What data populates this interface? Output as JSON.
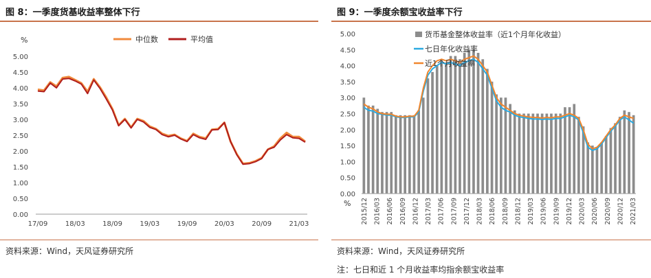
{
  "chart_data": [
    {
      "type": "line",
      "panel_title": "图 8：一季度货基收益率整体下行",
      "unit": "%",
      "ylim": [
        0,
        5
      ],
      "yticks": [
        "0.00",
        "0.50",
        "1.00",
        "1.50",
        "2.00",
        "2.50",
        "3.00",
        "3.50",
        "4.00",
        "4.50",
        "5.00"
      ],
      "x_ticks": [
        "17/09",
        "18/03",
        "18/09",
        "19/03",
        "19/09",
        "20/03",
        "20/09",
        "21/03"
      ],
      "x_tick_index": [
        0,
        6,
        12,
        18,
        24,
        30,
        36,
        42
      ],
      "legend_position": "top-center",
      "series": [
        {
          "name": "中位数",
          "color": "#f08a3c",
          "values": [
            3.95,
            3.92,
            4.18,
            4.05,
            4.32,
            4.35,
            4.25,
            4.15,
            3.88,
            4.28,
            4.02,
            3.7,
            3.33,
            2.82,
            3.02,
            2.75,
            3.02,
            2.95,
            2.78,
            2.7,
            2.55,
            2.48,
            2.52,
            2.4,
            2.32,
            2.55,
            2.45,
            2.4,
            2.68,
            2.7,
            2.9,
            2.3,
            1.9,
            1.6,
            1.62,
            1.68,
            1.78,
            2.05,
            2.15,
            2.4,
            2.58,
            2.45,
            2.45,
            2.3
          ]
        },
        {
          "name": "平均值",
          "color": "#b01d1d",
          "values": [
            3.9,
            3.88,
            4.15,
            4.0,
            4.28,
            4.3,
            4.22,
            4.12,
            3.82,
            4.25,
            3.98,
            3.65,
            3.3,
            2.8,
            3.0,
            2.73,
            3.0,
            2.92,
            2.75,
            2.68,
            2.52,
            2.45,
            2.5,
            2.38,
            2.3,
            2.52,
            2.42,
            2.37,
            2.67,
            2.68,
            2.9,
            2.3,
            1.88,
            1.58,
            1.6,
            1.66,
            1.76,
            2.05,
            2.12,
            2.35,
            2.52,
            2.42,
            2.4,
            2.28
          ]
        }
      ],
      "source": "资料来源：Wind，天风证券研究所"
    },
    {
      "type": "bar+line",
      "panel_title": "图 9：一季度余额宝收益率下行",
      "unit": "%",
      "ylim": [
        0,
        5
      ],
      "yticks": [
        "0.00",
        "0.50",
        "1.00",
        "1.50",
        "2.00",
        "2.50",
        "3.00",
        "3.50",
        "4.00",
        "4.50",
        "5.00"
      ],
      "x_ticks": [
        "2015/12",
        "2016/03",
        "2016/06",
        "2016/09",
        "2016/12",
        "2017/03",
        "2017/06",
        "2017/09",
        "2017/12",
        "2018/03",
        "2018/06",
        "2018/09",
        "2018/12",
        "2019/03",
        "2019/06",
        "2019/09",
        "2019/12",
        "2020/03",
        "2020/06",
        "2020/09",
        "2020/12",
        "2021/03"
      ],
      "legend_position": "top-left",
      "bar_series": {
        "name": "货币基金整体收益率（近1个月年化收益）",
        "color": "#8c8c8c",
        "values": [
          3.0,
          2.75,
          2.75,
          2.65,
          2.55,
          2.55,
          2.55,
          2.45,
          2.45,
          2.45,
          2.45,
          2.45,
          2.6,
          3.0,
          3.6,
          3.8,
          4.0,
          4.2,
          4.1,
          4.3,
          4.3,
          4.2,
          4.4,
          4.5,
          4.5,
          4.4,
          4.2,
          3.9,
          3.5,
          3.1,
          3.0,
          3.0,
          2.8,
          2.6,
          2.5,
          2.5,
          2.5,
          2.5,
          2.5,
          2.5,
          2.5,
          2.5,
          2.5,
          2.5,
          2.7,
          2.7,
          2.8,
          2.4,
          2.1,
          1.6,
          1.5,
          1.45,
          1.6,
          1.8,
          2.05,
          2.2,
          2.4,
          2.6,
          2.55,
          2.45
        ]
      },
      "series": [
        {
          "name": "七日年化收益率",
          "color": "#2aa9e0",
          "values": [
            2.7,
            2.6,
            2.58,
            2.5,
            2.48,
            2.45,
            2.45,
            2.4,
            2.38,
            2.38,
            2.4,
            2.4,
            2.55,
            3.2,
            3.7,
            3.9,
            4.0,
            4.1,
            4.05,
            4.1,
            4.05,
            4.0,
            4.1,
            4.15,
            4.2,
            4.1,
            3.9,
            3.7,
            3.3,
            2.9,
            2.7,
            2.6,
            2.55,
            2.45,
            2.4,
            2.38,
            2.35,
            2.33,
            2.33,
            2.32,
            2.33,
            2.32,
            2.35,
            2.35,
            2.4,
            2.45,
            2.4,
            2.3,
            1.9,
            1.45,
            1.35,
            1.4,
            1.55,
            1.75,
            1.95,
            2.1,
            2.3,
            2.4,
            2.3,
            2.2
          ]
        },
        {
          "name": "近1个月收益率",
          "color": "#f0862e",
          "values": [
            2.8,
            2.7,
            2.65,
            2.55,
            2.5,
            2.48,
            2.48,
            2.42,
            2.4,
            2.4,
            2.42,
            2.42,
            2.6,
            3.3,
            3.8,
            4.0,
            4.15,
            4.2,
            4.15,
            4.2,
            4.15,
            4.1,
            4.2,
            4.25,
            4.3,
            4.2,
            4.0,
            3.8,
            3.4,
            3.0,
            2.8,
            2.7,
            2.6,
            2.5,
            2.45,
            2.42,
            2.4,
            2.38,
            2.38,
            2.36,
            2.38,
            2.37,
            2.4,
            2.4,
            2.45,
            2.5,
            2.45,
            2.35,
            2.0,
            1.55,
            1.4,
            1.45,
            1.6,
            1.8,
            2.0,
            2.15,
            2.35,
            2.45,
            2.4,
            2.35
          ]
        }
      ],
      "source": "资料来源：Wind，天风证券研究所",
      "note": "注：七日和近 1 个月收益率均指余额宝收益率"
    }
  ]
}
